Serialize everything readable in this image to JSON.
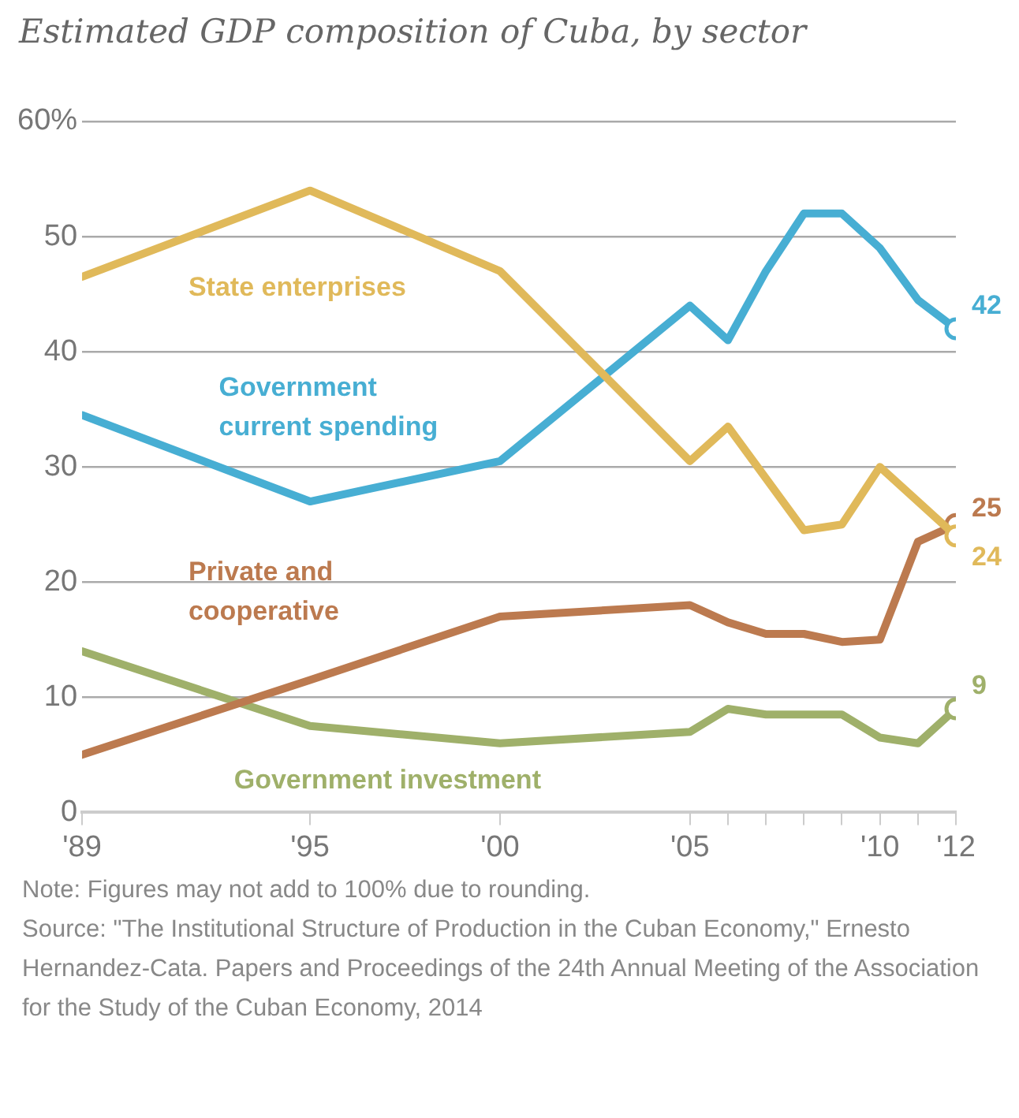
{
  "chart_data": {
    "type": "line",
    "title": "Estimated GDP composition of Cuba, by sector",
    "x": [
      1989,
      1995,
      2000,
      2005,
      2006,
      2007,
      2008,
      2009,
      2010,
      2011,
      2012
    ],
    "xlim": [
      1989,
      2012
    ],
    "xticks": [
      {
        "value": 1989,
        "label": "'89"
      },
      {
        "value": 1995,
        "label": "'95"
      },
      {
        "value": 2000,
        "label": "'00"
      },
      {
        "value": 2005,
        "label": "'05"
      },
      {
        "value": 2006,
        "label": null
      },
      {
        "value": 2007,
        "label": null
      },
      {
        "value": 2008,
        "label": null
      },
      {
        "value": 2009,
        "label": null
      },
      {
        "value": 2010,
        "label": "'10"
      },
      {
        "value": 2011,
        "label": null
      },
      {
        "value": 2012,
        "label": "'12"
      }
    ],
    "ylim": [
      0,
      60
    ],
    "yticks": [
      0,
      10,
      20,
      30,
      40,
      50,
      {
        "value": 60,
        "label": "60%"
      }
    ],
    "grid": "y",
    "series": [
      {
        "name": "State enterprises",
        "color": "#e0b95a",
        "values": [
          46.5,
          54,
          47,
          30.5,
          33.5,
          29,
          24.5,
          25,
          30,
          27,
          24
        ],
        "value_labels": [
          null,
          null,
          null,
          null,
          null,
          null,
          null,
          null,
          null,
          null,
          "24"
        ]
      },
      {
        "name": "Government current spending",
        "color": "#47aed3",
        "values": [
          34.5,
          27,
          30.5,
          44,
          41,
          47,
          52,
          52,
          49,
          44.5,
          42
        ],
        "value_labels": [
          null,
          null,
          null,
          null,
          null,
          null,
          null,
          null,
          null,
          null,
          "42"
        ]
      },
      {
        "name": "Private and cooperative",
        "color": "#bc7a4f",
        "values": [
          5,
          11.5,
          17,
          18,
          16.5,
          15.5,
          15.5,
          14.8,
          15,
          23.5,
          25
        ],
        "value_labels": [
          null,
          null,
          null,
          null,
          null,
          null,
          null,
          null,
          null,
          null,
          "25"
        ]
      },
      {
        "name": "Government investment",
        "color": "#9fb06a",
        "values": [
          14,
          7.5,
          6,
          7,
          9,
          8.5,
          8.5,
          8.5,
          6.5,
          6,
          9
        ],
        "value_labels": [
          null,
          null,
          null,
          null,
          null,
          null,
          null,
          null,
          null,
          null,
          "9"
        ]
      }
    ],
    "annotations": [
      "Note: Figures may not add to 100% due to rounding.",
      "Source: \"The Institutional Structure of Production in the Cuban Economy,\" Ernesto Hernandez-Cata. Papers and Proceedings of the 24th Annual Meeting of the Association for the Study of the Cuban Economy, 2014"
    ]
  }
}
